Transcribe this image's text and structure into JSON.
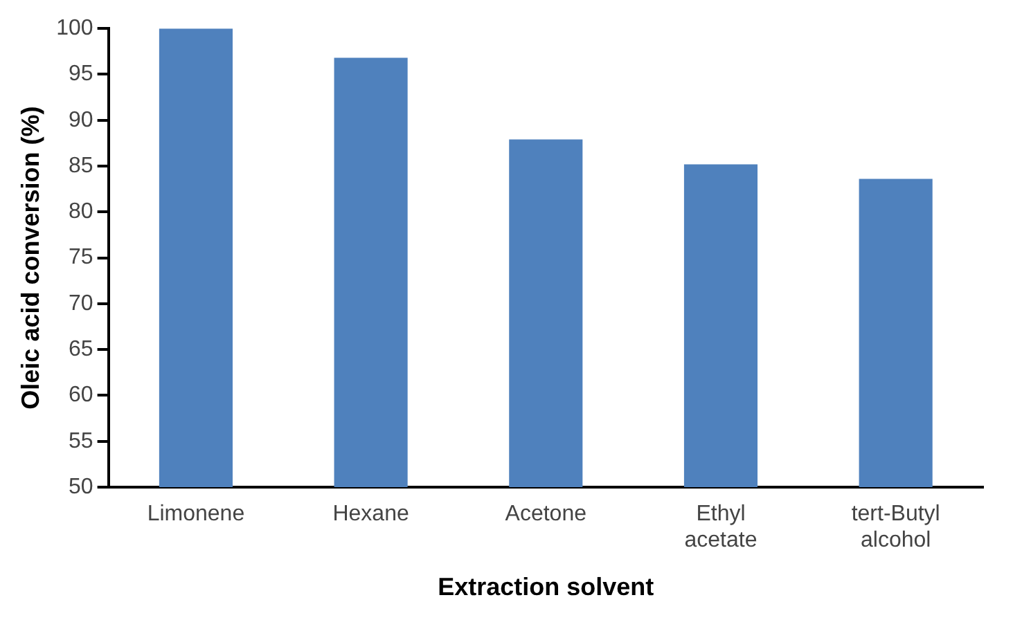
{
  "chart_data": {
    "type": "bar",
    "xlabel": "Extraction solvent",
    "ylabel": "Oleic acid conversion (%)",
    "categories": [
      "Limonene",
      "Hexane",
      "Acetone",
      "Ethyl acetate",
      "tert-Butyl alcohol"
    ],
    "values": [
      100,
      96.8,
      87.9,
      85.2,
      83.6
    ],
    "color": "#4f81bd",
    "ylim": [
      50,
      100
    ],
    "yticks": [
      50,
      55,
      60,
      65,
      70,
      75,
      80,
      85,
      90,
      95,
      100
    ],
    "grid": false,
    "legend": false
  }
}
